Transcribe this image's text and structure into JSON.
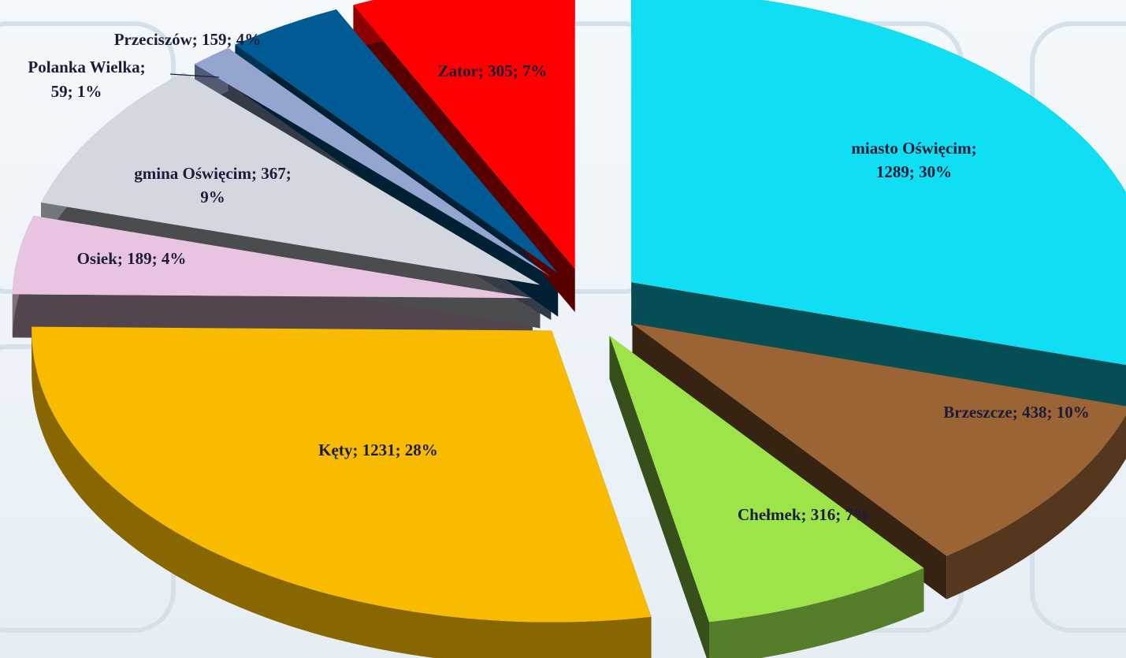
{
  "chart_data": {
    "type": "pie3d",
    "categories": [
      "miasto Oświęcim",
      "Brzeszcze",
      "Chełmek",
      "Kęty",
      "Osiek",
      "gmina Oświęcim",
      "Polanka Wielka",
      "Przeciszów",
      "Zator"
    ],
    "values": [
      1289,
      438,
      316,
      1231,
      189,
      367,
      59,
      159,
      305
    ],
    "value_labels": [
      [
        "miasto Oświęcim;",
        "1289; 30%"
      ],
      [
        "Brzeszcze; 438; 10%"
      ],
      [
        "Chełmek; 316; 7%"
      ],
      [
        "Kęty; 1231; 28%"
      ],
      [
        "Osiek; 189; 4%"
      ],
      [
        "gmina Oświęcim; 367;",
        "9%"
      ],
      [
        "Polanka Wielka;",
        "59; 1%"
      ],
      [
        "Przeciszów; 159; 4%"
      ],
      [
        "Zator; 305; 7%"
      ]
    ],
    "colors": [
      "#10def2",
      "#9a6434",
      "#9de34a",
      "#f8bb00",
      "#e9c4e0",
      "#d3d8e0",
      "#94a6cf",
      "#005b94",
      "#ff0000"
    ]
  }
}
